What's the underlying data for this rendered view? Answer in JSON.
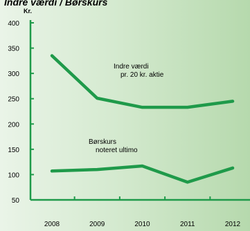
{
  "chart_data": {
    "type": "line",
    "title": "Indre værdi / Børskurs",
    "y_unit": "Kr.",
    "categories": [
      "2008",
      "2009",
      "2010",
      "2011",
      "2012"
    ],
    "yticks": [
      50,
      100,
      150,
      200,
      250,
      300,
      350,
      400
    ],
    "ylim": [
      50,
      400
    ],
    "grid": false,
    "series": [
      {
        "name_lines": [
          "Indre værdi",
          "pr. 20 kr. aktie"
        ],
        "values": [
          335,
          251,
          233,
          233,
          245
        ],
        "color": "#1f9a4a"
      },
      {
        "name_lines": [
          "Børskurs",
          "noteret ultimo"
        ],
        "values": [
          107,
          110,
          117,
          85,
          113
        ],
        "color": "#1f9a4a"
      }
    ]
  }
}
